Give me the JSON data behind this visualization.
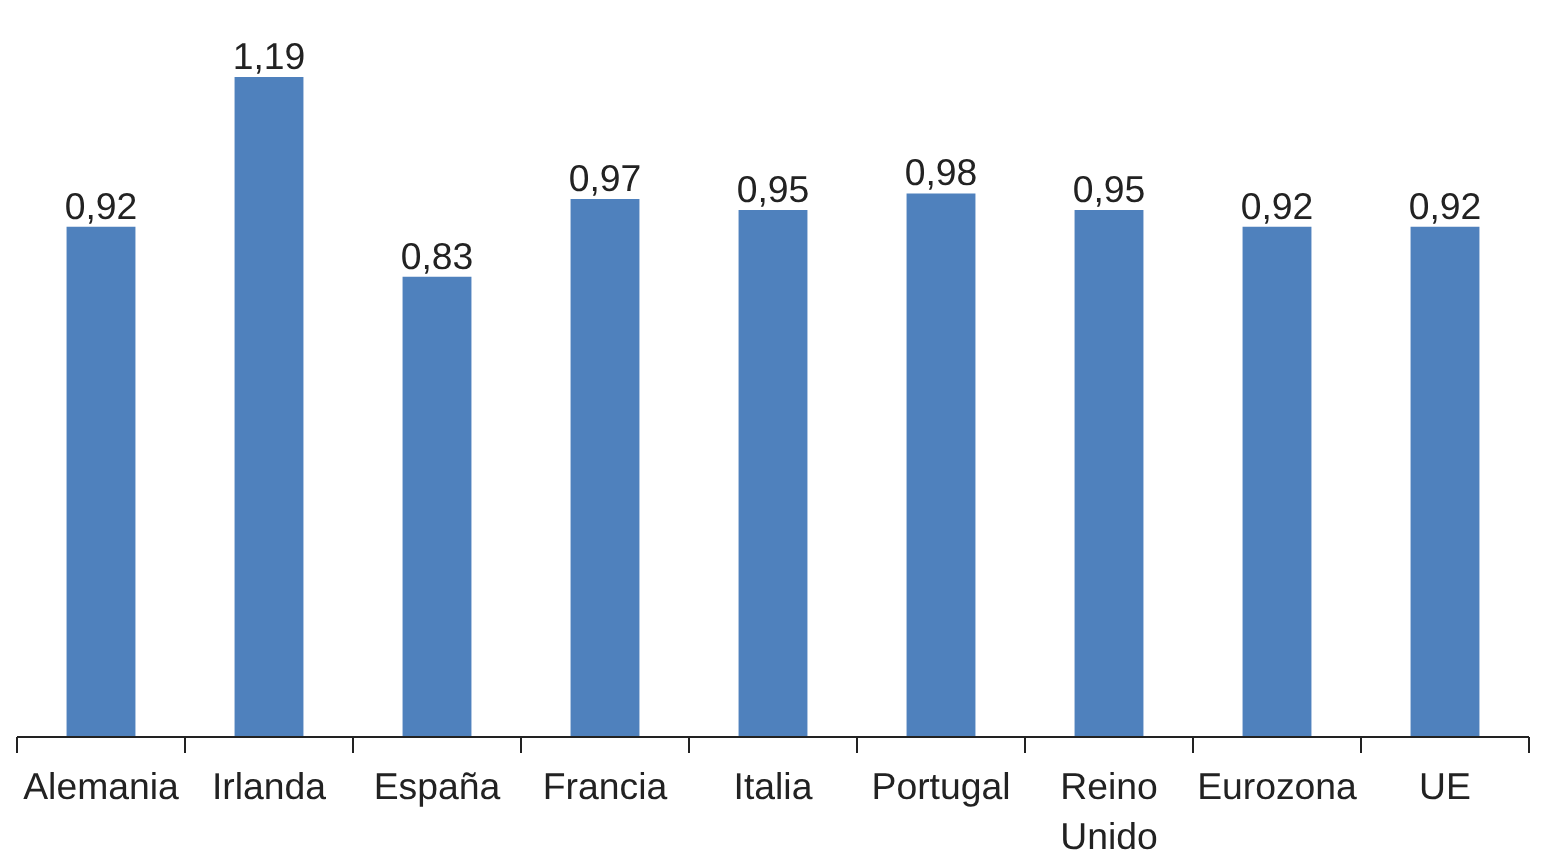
{
  "chart_data": {
    "type": "bar",
    "categories": [
      "Alemania",
      "Irlanda",
      "España",
      "Francia",
      "Italia",
      "Portugal",
      "Reino Unido",
      "Eurozona",
      "UE"
    ],
    "values": [
      0.92,
      1.19,
      0.83,
      0.97,
      0.95,
      0.98,
      0.95,
      0.92,
      0.92
    ],
    "value_labels": [
      "0,92",
      "1,19",
      "0,83",
      "0,97",
      "0,95",
      "0,98",
      "0,95",
      "0,92",
      "0,92"
    ],
    "color": "#4f81bd",
    "grid": false
  }
}
